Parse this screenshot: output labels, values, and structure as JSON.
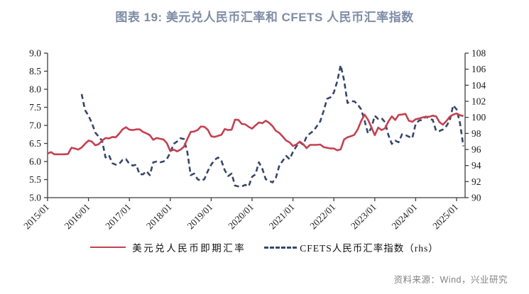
{
  "page": {
    "title": "图表 19: 美元兑人民币汇率和 CFETS 人民币汇率指数",
    "source_note": "资料来源：Wind，兴业研究"
  },
  "colors": {
    "title": "#7d8ca6",
    "usdcny_line": "#c44150",
    "cfets_line": "#36466b",
    "axis": "#3f3f3f",
    "axis_text": "#1a1a1a",
    "source_text": "#828282"
  },
  "chart_data": {
    "type": "line",
    "title": "图表 19: 美元兑人民币汇率和 CFETS 人民币汇率指数",
    "grid": false,
    "legend_position": "bottom",
    "x_start_label": "2015/01",
    "x_months_per_point": 1,
    "x_tick_labels": [
      "2015/01",
      "2016/01",
      "2017/01",
      "2018/01",
      "2019/01",
      "2020/01",
      "2021/01",
      "2022/01",
      "2023/01",
      "2024/01",
      "2025/01"
    ],
    "left_axis": {
      "min": 5.0,
      "max": 9.0,
      "step": 0.5,
      "tick_labels": [
        "9.0",
        "8.5",
        "8.0",
        "7.5",
        "7.0",
        "6.5",
        "6.0",
        "5.5",
        "5.0"
      ]
    },
    "right_axis": {
      "min": 90,
      "max": 108,
      "step": 2,
      "tick_labels": [
        "108",
        "106",
        "104",
        "102",
        "100",
        "98",
        "96",
        "94",
        "92",
        "90"
      ]
    },
    "series": [
      {
        "name": "美元兑人民币即期汇率",
        "axis": "left",
        "style": "solid",
        "color": "#c44150",
        "values": [
          6.22,
          6.26,
          6.2,
          6.2,
          6.2,
          6.2,
          6.21,
          6.38,
          6.36,
          6.33,
          6.39,
          6.49,
          6.58,
          6.55,
          6.45,
          6.48,
          6.58,
          6.65,
          6.64,
          6.68,
          6.67,
          6.77,
          6.89,
          6.95,
          6.88,
          6.87,
          6.89,
          6.89,
          6.82,
          6.78,
          6.73,
          6.6,
          6.65,
          6.63,
          6.61,
          6.51,
          6.29,
          6.33,
          6.28,
          6.33,
          6.41,
          6.62,
          6.82,
          6.83,
          6.87,
          6.97,
          6.96,
          6.88,
          6.7,
          6.68,
          6.71,
          6.74,
          6.9,
          6.87,
          6.88,
          7.16,
          7.15,
          7.04,
          7.03,
          6.96,
          6.91,
          7.0,
          7.08,
          7.06,
          7.13,
          7.07,
          6.98,
          6.85,
          6.79,
          6.69,
          6.58,
          6.53,
          6.43,
          6.47,
          6.55,
          6.48,
          6.37,
          6.46,
          6.46,
          6.46,
          6.47,
          6.4,
          6.38,
          6.36,
          6.36,
          6.31,
          6.34,
          6.61,
          6.67,
          6.7,
          6.74,
          6.89,
          7.12,
          7.3,
          7.16,
          6.95,
          6.73,
          6.94,
          6.87,
          6.92,
          7.11,
          7.25,
          7.15,
          7.29,
          7.3,
          7.32,
          7.13,
          7.1,
          7.17,
          7.19,
          7.22,
          7.24,
          7.24,
          7.27,
          7.25,
          7.09,
          7.02,
          7.12,
          7.24,
          7.3,
          7.33,
          7.28,
          7.26
        ]
      },
      {
        "name": "CFETS人民币汇率指数（rhs）",
        "axis": "right",
        "style": "dashed",
        "color": "#36466b",
        "values": [
          null,
          null,
          null,
          null,
          null,
          null,
          null,
          null,
          null,
          null,
          102.9,
          100.9,
          100.2,
          99.3,
          98.1,
          97.6,
          97.1,
          95.0,
          95.3,
          94.3,
          94.1,
          94.2,
          94.7,
          94.8,
          94.2,
          94.0,
          94.1,
          92.9,
          92.9,
          93.3,
          92.8,
          94.4,
          94.5,
          94.4,
          94.5,
          94.8,
          95.6,
          96.7,
          97.0,
          97.4,
          97.3,
          95.7,
          92.8,
          93.0,
          92.3,
          92.1,
          92.3,
          93.3,
          94.1,
          94.7,
          95.0,
          94.6,
          93.4,
          92.7,
          93.0,
          91.5,
          91.4,
          91.4,
          91.6,
          91.4,
          92.6,
          92.9,
          94.4,
          93.6,
          92.3,
          92.1,
          91.9,
          92.5,
          94.0,
          94.6,
          95.2,
          94.8,
          95.7,
          96.4,
          96.9,
          96.6,
          97.6,
          98.0,
          98.3,
          98.9,
          99.5,
          100.8,
          102.3,
          102.5,
          103.1,
          104.5,
          106.5,
          104.6,
          101.8,
          102.0,
          102.0,
          101.6,
          101.0,
          99.6,
          98.0,
          98.7,
          100.2,
          99.8,
          99.9,
          99.4,
          97.8,
          96.7,
          97.1,
          96.9,
          97.9,
          97.8,
          97.6,
          97.4,
          99.2,
          99.6,
          99.7,
          100.1,
          99.8,
          99.7,
          98.3,
          98.3,
          98.5,
          98.9,
          99.6,
          101.5,
          101.0,
          99.3,
          96.4
        ]
      }
    ]
  }
}
